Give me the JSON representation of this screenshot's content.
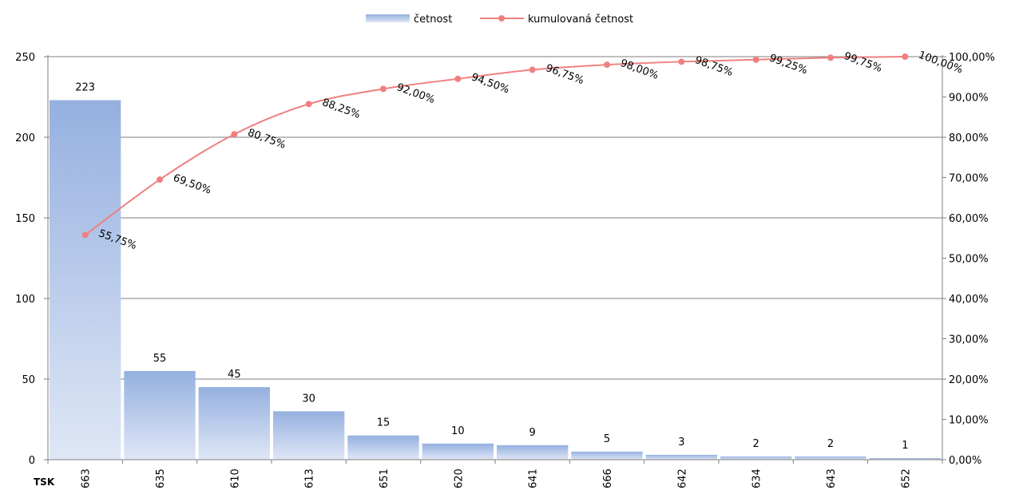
{
  "chart_data": {
    "type": "bar",
    "x_category_title": "TSK",
    "categories": [
      "663",
      "635",
      "610",
      "613",
      "651",
      "620",
      "641",
      "666",
      "642",
      "634",
      "643",
      "652"
    ],
    "series": [
      {
        "name": "četnost",
        "type": "bar",
        "axis": "left",
        "values": [
          223,
          55,
          45,
          30,
          15,
          10,
          9,
          5,
          3,
          2,
          2,
          1
        ],
        "labels": [
          "223",
          "55",
          "45",
          "30",
          "15",
          "10",
          "9",
          "5",
          "3",
          "2",
          "2",
          "1"
        ],
        "color": "#8eaadb"
      },
      {
        "name": "kumulovaná četnost",
        "type": "line",
        "axis": "right",
        "values": [
          55.75,
          69.5,
          80.75,
          88.25,
          92.0,
          94.5,
          96.75,
          98.0,
          98.75,
          99.25,
          99.75,
          100.0
        ],
        "labels": [
          "55,75%",
          "69,50%",
          "80,75%",
          "88,25%",
          "92,00%",
          "94,50%",
          "96,75%",
          "98,00%",
          "98,75%",
          "99,25%",
          "99,75%",
          "100,00%"
        ],
        "color": "#f08080"
      }
    ],
    "y_left": {
      "range": [
        0,
        250
      ],
      "ticks": [
        0,
        50,
        100,
        150,
        200,
        250
      ],
      "tick_labels": [
        "0",
        "50",
        "100",
        "150",
        "200",
        "250"
      ]
    },
    "y_right": {
      "range": [
        0,
        100
      ],
      "ticks": [
        0,
        10,
        20,
        30,
        40,
        50,
        60,
        70,
        80,
        90,
        100
      ],
      "tick_labels": [
        "0,00%",
        "10,00%",
        "20,00%",
        "30,00%",
        "40,00%",
        "50,00%",
        "60,00%",
        "70,00%",
        "80,00%",
        "90,00%",
        "100,00%"
      ]
    },
    "grid": true,
    "legend_position": "top-center"
  }
}
